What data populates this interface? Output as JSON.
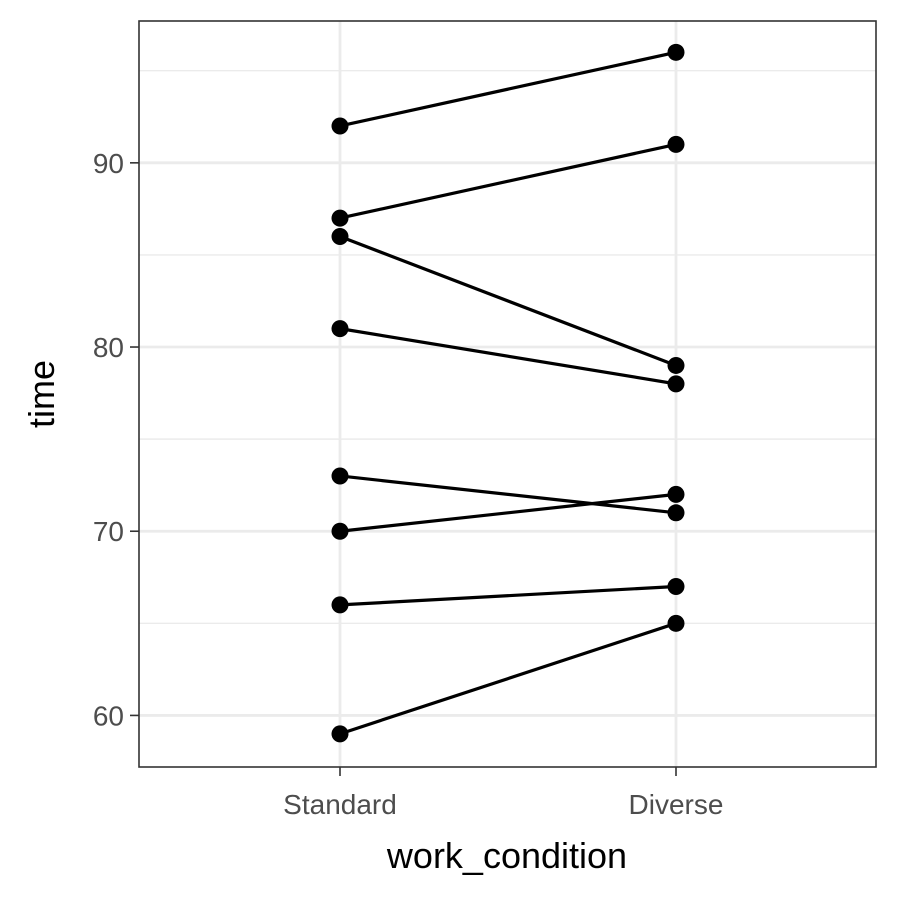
{
  "chart_data": {
    "type": "line",
    "title": "",
    "xlabel": "work_condition",
    "ylabel": "time",
    "categories": [
      "Standard",
      "Diverse"
    ],
    "ylim": [
      57.2,
      97.7
    ],
    "yticks": [
      60,
      70,
      80,
      90
    ],
    "y_minor_ticks": [
      65,
      75,
      85,
      95
    ],
    "grid": true,
    "legend": "none",
    "series": [
      {
        "values": [
          92,
          96
        ]
      },
      {
        "values": [
          87,
          91
        ]
      },
      {
        "values": [
          86,
          79
        ]
      },
      {
        "values": [
          81,
          78
        ]
      },
      {
        "values": [
          73,
          71
        ]
      },
      {
        "values": [
          70,
          72
        ]
      },
      {
        "values": [
          66,
          67
        ]
      },
      {
        "values": [
          59,
          65
        ]
      }
    ],
    "colors": {
      "line": "#000000",
      "point": "#000000",
      "grid_major": "#ebebeb",
      "grid_minor": "#ebebeb",
      "panel_border": "#333333",
      "tick_label": "#4d4d4d"
    }
  }
}
